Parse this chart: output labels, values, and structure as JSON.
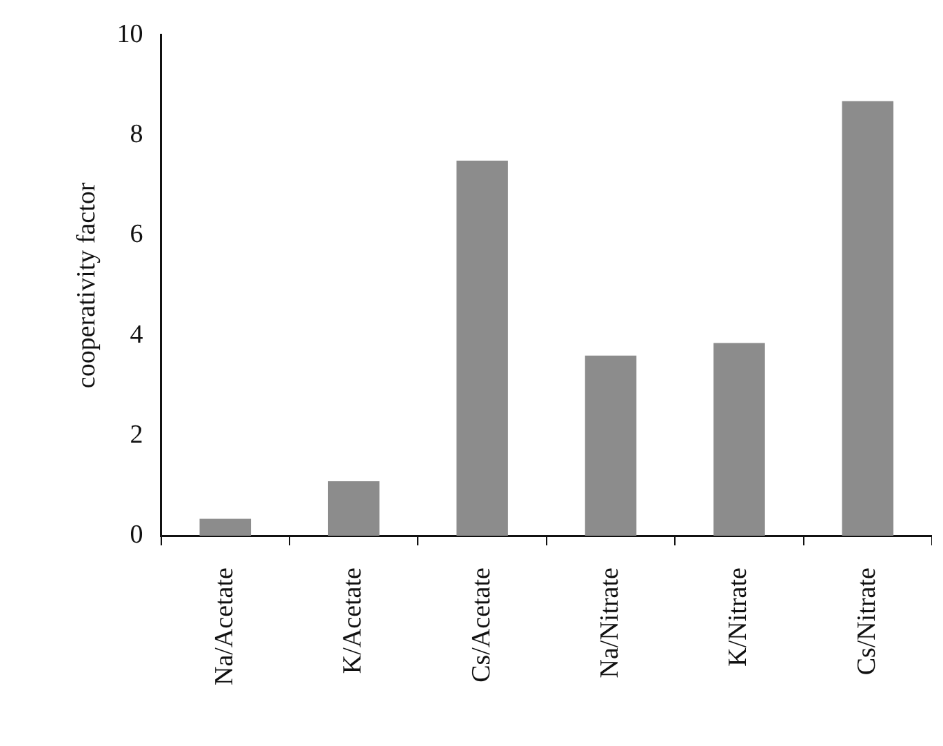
{
  "chart_data": {
    "type": "bar",
    "ylabel": "cooperativity factor",
    "categories": [
      "Na/Acetate",
      "K/Acetate",
      "Cs/Acetate",
      "Na/Nitrate",
      "K/Nitrate",
      "Cs/Nitrate"
    ],
    "values": [
      0.34,
      1.09,
      7.49,
      3.6,
      3.85,
      8.68
    ],
    "color": "#8c8c8c",
    "ylim": [
      0,
      10
    ],
    "yticks": [
      0,
      2,
      4,
      6,
      8,
      10
    ],
    "grid": false,
    "legend": false
  }
}
